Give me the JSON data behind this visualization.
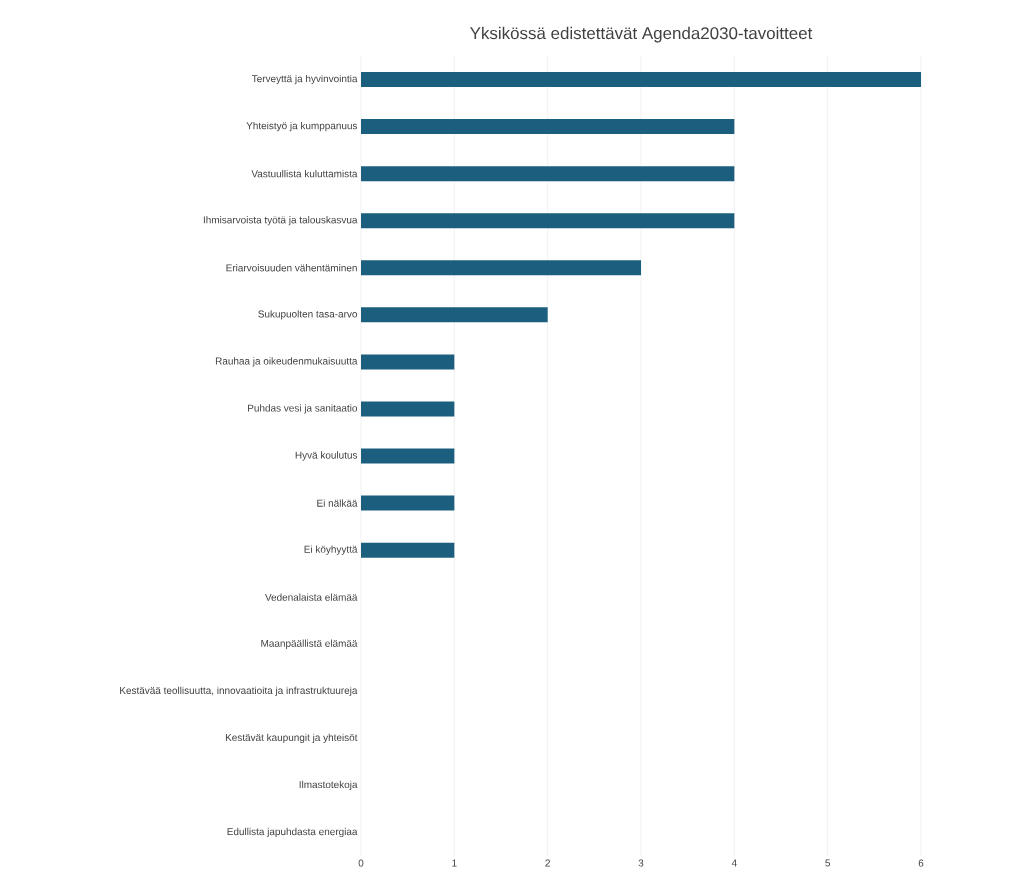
{
  "chart_data": {
    "type": "bar",
    "orientation": "horizontal",
    "title": "Yksikössä edistettävät Agenda2030-tavoitteet",
    "categories": [
      "Terveyttä ja hyvinvointia",
      "Yhteistyö ja kumppanuus",
      "Vastuullista kuluttamista",
      "Ihmisarvoista työtä ja talouskasvua",
      "Eriarvoisuuden vähentäminen",
      "Sukupuolten tasa-arvo",
      "Rauhaa ja oikeudenmukaisuutta",
      "Puhdas vesi ja sanitaatio",
      "Hyvä koulutus",
      "Ei nälkää",
      "Ei köyhyyttä",
      "Vedenalaista elämää",
      "Maanpäällistä elämää",
      "Kestävää teollisuutta, innovaatioita ja infrastruktuureja",
      "Kestävät kaupungit ja yhteisöt",
      "Ilmastotekoja",
      "Edullista japuhdasta energiaa"
    ],
    "values": [
      6,
      4,
      4,
      4,
      3,
      2,
      1,
      1,
      1,
      1,
      1,
      0,
      0,
      0,
      0,
      0,
      0
    ],
    "color": "#1b5e7e",
    "xlim": [
      0,
      6
    ],
    "xticks": [
      0,
      1,
      2,
      3,
      4,
      5,
      6
    ],
    "grid": "x"
  }
}
